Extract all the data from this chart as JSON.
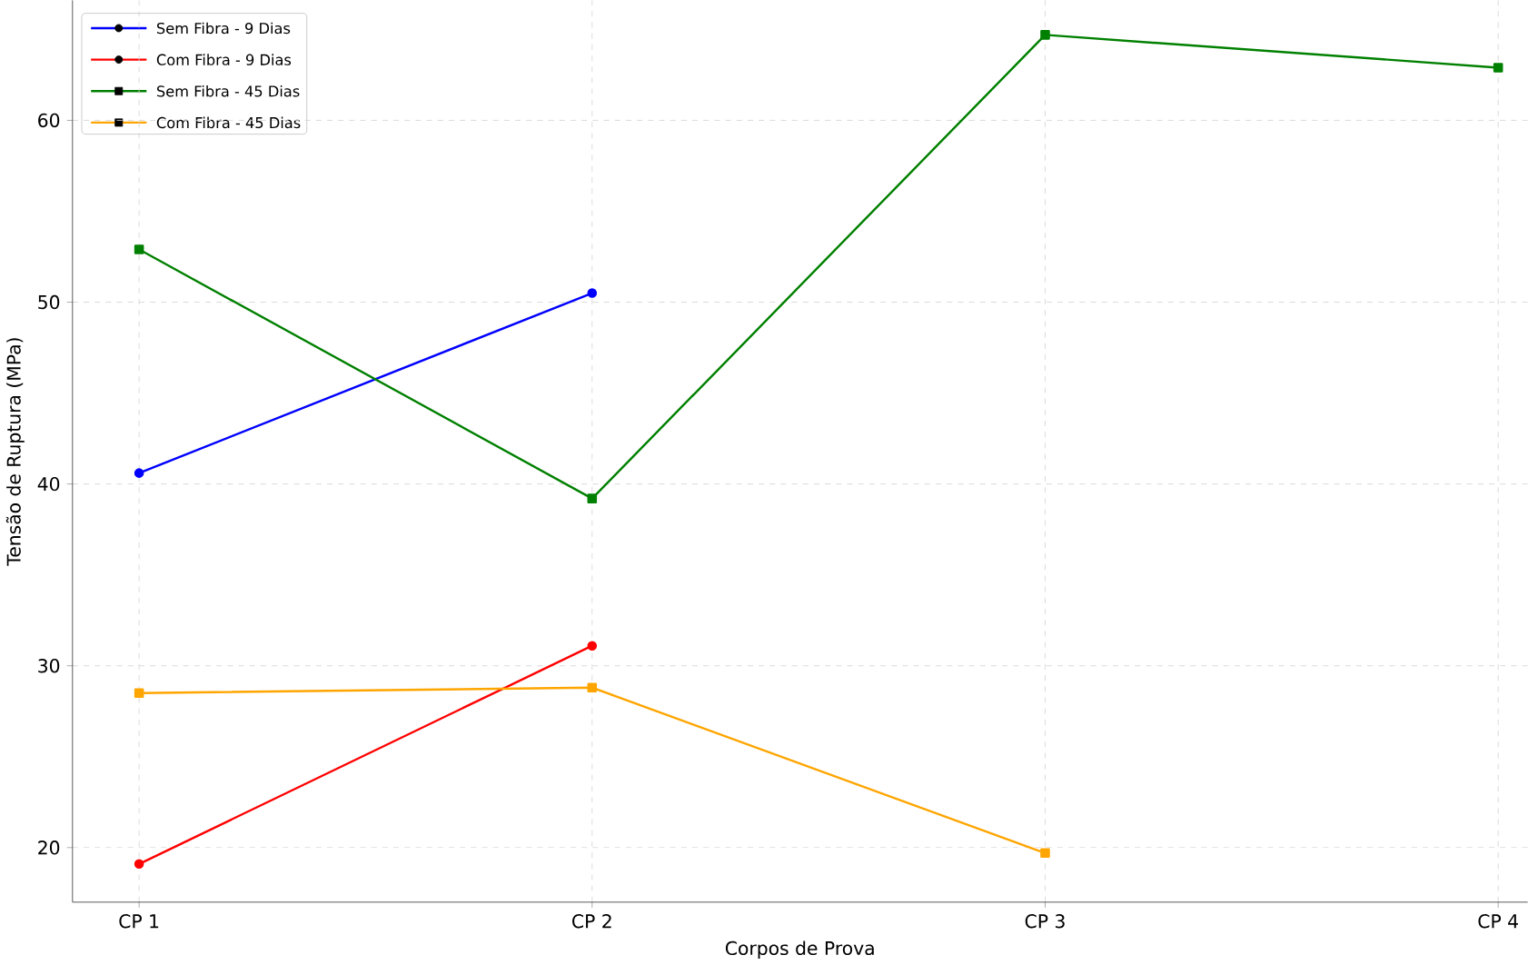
{
  "chart_data": {
    "type": "line",
    "xlabel": "Corpos de Prova",
    "ylabel": "Tensão de Ruptura (MPa)",
    "categories": [
      "CP 1",
      "CP 2",
      "CP 3",
      "CP 4"
    ],
    "series": [
      {
        "name": "Sem Fibra - 9 Dias",
        "color": "#0000ff",
        "marker": "circle",
        "values": [
          40.6,
          50.5,
          null,
          null
        ]
      },
      {
        "name": "Com Fibra - 9 Dias",
        "color": "#ff0000",
        "marker": "circle",
        "values": [
          19.1,
          31.1,
          null,
          null
        ]
      },
      {
        "name": "Sem Fibra - 45 Dias",
        "color": "#008000",
        "marker": "square",
        "values": [
          52.9,
          39.2,
          64.7,
          62.9
        ]
      },
      {
        "name": "Com Fibra - 45 Dias",
        "color": "#ffa500",
        "marker": "square",
        "values": [
          28.5,
          28.8,
          19.7,
          null
        ]
      }
    ],
    "ylim": [
      17,
      66.6
    ],
    "yticks": [
      20,
      30,
      40,
      50,
      60
    ],
    "grid": true,
    "legend": "top left",
    "line_style": "solid"
  }
}
